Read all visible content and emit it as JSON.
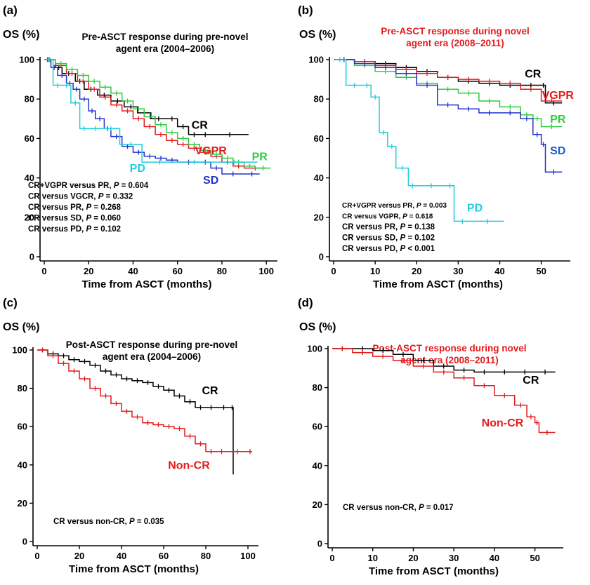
{
  "chart_data": [
    {
      "panel_label": "(a)",
      "type": "line",
      "title_lines": [
        "Pre-ASCT response during pre-novel",
        "agent era (2004–2006)"
      ],
      "title_color": "#000000",
      "ylabel": "OS (%)",
      "xlabel": "Time from ASCT (months)",
      "xlim": [
        0,
        105
      ],
      "ylim": [
        0,
        100
      ],
      "xticks": [
        0,
        20,
        40,
        60,
        80,
        100
      ],
      "yticks": [
        0,
        20,
        40,
        60,
        80,
        100
      ],
      "series": [
        {
          "name": "CR",
          "color": "#000000",
          "x": [
            0,
            5,
            8,
            14,
            18,
            24,
            30,
            36,
            42,
            48,
            55,
            60,
            65,
            70,
            75,
            92
          ],
          "y": [
            100,
            96,
            93,
            89,
            85,
            82,
            79,
            76,
            73,
            70,
            70,
            66,
            62,
            62,
            62,
            62
          ]
        },
        {
          "name": "VGPR",
          "color": "#e41a1c",
          "x": [
            0,
            5,
            10,
            15,
            20,
            25,
            30,
            35,
            40,
            45,
            50,
            55,
            60,
            65,
            70,
            75,
            80,
            85,
            90,
            100
          ],
          "y": [
            100,
            97,
            93,
            89,
            85,
            81,
            77,
            74,
            70,
            66,
            62,
            59,
            57,
            55,
            53,
            51,
            48,
            46,
            45,
            45
          ]
        },
        {
          "name": "PR",
          "color": "#2ecc40",
          "x": [
            0,
            5,
            10,
            15,
            20,
            25,
            30,
            35,
            40,
            45,
            50,
            55,
            60,
            65,
            70,
            75,
            80,
            85,
            90,
            95,
            102
          ],
          "y": [
            100,
            98,
            95,
            92,
            89,
            86,
            83,
            79,
            75,
            71,
            67,
            63,
            60,
            57,
            54,
            52,
            50,
            48,
            46,
            45,
            45
          ]
        },
        {
          "name": "SD",
          "color": "#2233cc",
          "x": [
            0,
            3,
            6,
            10,
            13,
            16,
            20,
            23,
            27,
            30,
            35,
            40,
            45,
            50,
            55,
            60,
            70,
            75,
            80,
            90,
            97
          ],
          "y": [
            100,
            96,
            92,
            88,
            85,
            80,
            74,
            70,
            65,
            61,
            56,
            53,
            51,
            50,
            49,
            48,
            48,
            45,
            42,
            42,
            42
          ]
        },
        {
          "name": "PD",
          "color": "#22ccdd",
          "x": [
            0,
            4,
            8,
            12,
            16,
            20,
            26,
            34,
            44,
            60,
            75,
            96
          ],
          "y": [
            100,
            87,
            87,
            78,
            65,
            65,
            65,
            57,
            48,
            48,
            48,
            48
          ]
        }
      ],
      "series_labels": [
        {
          "text": "CR",
          "color": "#000000",
          "x": 70,
          "y": 65
        },
        {
          "text": "VGPR",
          "color": "#e41a1c",
          "x": 75,
          "y": 52
        },
        {
          "text": "PR",
          "color": "#2ecc40",
          "x": 97,
          "y": 49
        },
        {
          "text": "PD",
          "color": "#22ccdd",
          "x": 42,
          "y": 43
        },
        {
          "text": "SD",
          "color": "#2233cc",
          "x": 75,
          "y": 37
        }
      ],
      "annotations": [
        "CR+VGPR versus PR, P = 0.604",
        "CR versus VGCR, P = 0.332",
        "CR versus PR, P = 0.268",
        "CR versus SD, P = 0.060",
        "CR versus PD, P = 0.102"
      ]
    },
    {
      "panel_label": "(b)",
      "type": "line",
      "title_lines": [
        "Pre-ASCT response during novel",
        "agent era (2008–2011)"
      ],
      "title_color": "#e41a1c",
      "ylabel": "OS (%)",
      "xlabel": "Time from ASCT (months)",
      "xlim": [
        0,
        57
      ],
      "ylim": [
        0,
        100
      ],
      "xticks": [
        0,
        10,
        20,
        30,
        40,
        50
      ],
      "yticks": [
        0,
        20,
        40,
        60,
        80,
        100
      ],
      "series": [
        {
          "name": "CR",
          "color": "#000000",
          "x": [
            0,
            5,
            10,
            15,
            20,
            25,
            30,
            35,
            40,
            45,
            50,
            51,
            55
          ],
          "y": [
            100,
            99,
            98,
            96,
            94,
            91,
            89,
            88,
            87,
            87,
            87,
            78,
            78
          ]
        },
        {
          "name": "VGPR",
          "color": "#e41a1c",
          "x": [
            0,
            5,
            10,
            15,
            20,
            25,
            30,
            35,
            40,
            45,
            50,
            55
          ],
          "y": [
            100,
            99,
            97,
            95,
            93,
            91,
            90,
            89,
            88,
            85,
            79,
            79
          ]
        },
        {
          "name": "PR",
          "color": "#2ecc40",
          "x": [
            0,
            5,
            10,
            15,
            20,
            25,
            30,
            35,
            40,
            45,
            48,
            50,
            55
          ],
          "y": [
            100,
            97,
            94,
            91,
            88,
            85,
            83,
            79,
            76,
            72,
            70,
            66,
            66
          ]
        },
        {
          "name": "SD",
          "color": "#2233cc",
          "x": [
            0,
            5,
            10,
            15,
            20,
            25,
            30,
            35,
            40,
            45,
            48,
            50,
            51,
            55
          ],
          "y": [
            100,
            98,
            96,
            93,
            87,
            77,
            75,
            73,
            73,
            70,
            62,
            57,
            43,
            43
          ]
        },
        {
          "name": "PD",
          "color": "#22ccdd",
          "x": [
            0,
            3,
            7,
            9,
            11,
            13,
            15,
            18,
            20,
            27,
            29,
            33,
            41
          ],
          "y": [
            100,
            87,
            87,
            81,
            63,
            56,
            45,
            36,
            36,
            36,
            18,
            18,
            18
          ]
        }
      ],
      "series_labels": [
        {
          "text": "CR",
          "color": "#000000",
          "x": 48,
          "y": 91
        },
        {
          "text": "VGPR",
          "color": "#e41a1c",
          "x": 54,
          "y": 80
        },
        {
          "text": "PR",
          "color": "#2ecc40",
          "x": 54,
          "y": 68
        },
        {
          "text": "SD",
          "color": "#1a5fcc",
          "x": 54,
          "y": 52
        },
        {
          "text": "PD",
          "color": "#22ccdd",
          "x": 34,
          "y": 23
        }
      ],
      "annotations": [
        "CR+VGPR versus PR, P = 0.003",
        "CR versus VGPR, P = 0.618",
        "CR versus PR, P = 0.138",
        "CR versus SD, P = 0.102",
        "CR versus PD, P < 0.001"
      ]
    },
    {
      "panel_label": "(c)",
      "type": "line",
      "title_lines": [
        "Post-ASCT response during pre-novel",
        "agent era (2004–2006)"
      ],
      "title_color": "#000000",
      "ylabel": "OS (%)",
      "xlabel": "Time from ASCT (months)",
      "xlim": [
        0,
        105
      ],
      "ylim": [
        0,
        100
      ],
      "xticks": [
        0,
        20,
        40,
        60,
        80,
        100
      ],
      "yticks": [
        0,
        20,
        40,
        60,
        80,
        100
      ],
      "series": [
        {
          "name": "CR",
          "color": "#000000",
          "x": [
            0,
            5,
            10,
            15,
            20,
            25,
            30,
            35,
            40,
            45,
            50,
            55,
            60,
            65,
            70,
            75,
            80,
            85,
            92,
            93
          ],
          "y": [
            100,
            98,
            97,
            95,
            94,
            92,
            89,
            87,
            85,
            84,
            83,
            81,
            79,
            76,
            73,
            70,
            70,
            70,
            70,
            35
          ]
        },
        {
          "name": "Non-CR",
          "color": "#e41a1c",
          "x": [
            0,
            5,
            10,
            15,
            20,
            25,
            30,
            35,
            40,
            45,
            50,
            55,
            60,
            65,
            70,
            75,
            80,
            85,
            90,
            100,
            102
          ],
          "y": [
            100,
            97,
            93,
            89,
            85,
            80,
            76,
            72,
            68,
            65,
            62,
            61,
            60,
            59,
            55,
            51,
            47,
            47,
            47,
            47,
            47
          ]
        }
      ],
      "series_labels": [
        {
          "text": "CR",
          "color": "#000000",
          "x": 82,
          "y": 77
        },
        {
          "text": "Non-CR",
          "color": "#e41a1c",
          "x": 72,
          "y": 38
        }
      ],
      "annotations": [
        "CR versus non-CR, P = 0.035"
      ]
    },
    {
      "panel_label": "(d)",
      "type": "line",
      "title_lines": [
        "Post-ASCT response during novel",
        "agent era (2008–2011)"
      ],
      "title_color": "#e41a1c",
      "ylabel": "OS (%)",
      "xlabel": "Time from ASCT (months)",
      "xlim": [
        0,
        57
      ],
      "ylim": [
        0,
        100
      ],
      "xticks": [
        0,
        10,
        20,
        30,
        40,
        50
      ],
      "yticks": [
        0,
        20,
        40,
        60,
        80,
        100
      ],
      "series": [
        {
          "name": "CR",
          "color": "#000000",
          "x": [
            0,
            5,
            10,
            15,
            20,
            25,
            30,
            35,
            40,
            45,
            50,
            55
          ],
          "y": [
            100,
            100,
            99,
            97,
            94,
            91,
            89,
            88,
            88,
            88,
            88,
            88
          ]
        },
        {
          "name": "Non-CR",
          "color": "#e41a1c",
          "x": [
            0,
            5,
            10,
            15,
            20,
            25,
            30,
            35,
            40,
            45,
            48,
            50,
            51,
            55
          ],
          "y": [
            100,
            98,
            96,
            94,
            91,
            88,
            85,
            81,
            76,
            71,
            65,
            62,
            57,
            57
          ]
        }
      ],
      "series_labels": [
        {
          "text": "CR",
          "color": "#000000",
          "x": 49,
          "y": 82
        },
        {
          "text": "Non-CR",
          "color": "#e41a1c",
          "x": 42,
          "y": 60
        }
      ],
      "annotations": [
        "CR versus non-CR, P = 0.017"
      ]
    }
  ]
}
